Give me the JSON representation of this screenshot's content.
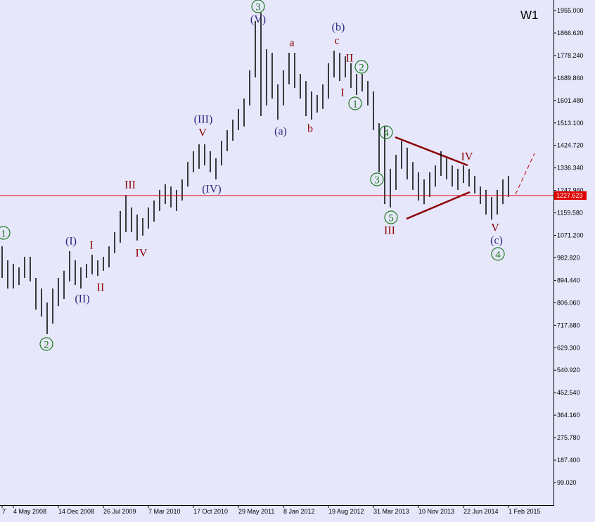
{
  "chart_data": {
    "type": "ohlc",
    "timeframe": "W1",
    "color": "#000000",
    "categories": [
      "7",
      null,
      "4 May 2008",
      null,
      null,
      null,
      null,
      null,
      null,
      null,
      "14 Dec 2008",
      null,
      null,
      null,
      null,
      null,
      null,
      null,
      "26 Jul 2009",
      null,
      null,
      null,
      null,
      null,
      null,
      null,
      "7 Mar 2010",
      null,
      null,
      null,
      null,
      null,
      null,
      null,
      "17 Oct 2010",
      null,
      null,
      null,
      null,
      null,
      null,
      null,
      "29 May 2011",
      null,
      null,
      null,
      null,
      null,
      null,
      null,
      "8 Jan 2012",
      null,
      null,
      null,
      null,
      null,
      null,
      null,
      "19 Aug 2012",
      null,
      null,
      null,
      null,
      null,
      null,
      null,
      "31 Mar 2013",
      null,
      null,
      null,
      null,
      null,
      null,
      null,
      "10 Nov 2013",
      null,
      null,
      null,
      null,
      null,
      null,
      null,
      "22 Jun 2014",
      null,
      null,
      null,
      null,
      null,
      null,
      null,
      "1 Feb 2015"
    ],
    "high": [
      1028,
      973,
      959,
      945,
      987,
      987,
      904,
      862,
      807,
      862,
      904,
      932,
      1009,
      973,
      945,
      959,
      995,
      973,
      987,
      1028,
      1084,
      1167,
      1230,
      1181,
      1153,
      1139,
      1181,
      1208,
      1250,
      1272,
      1263,
      1250,
      1291,
      1360,
      1402,
      1429,
      1429,
      1402,
      1374,
      1443,
      1485,
      1526,
      1568,
      1609,
      1720,
      1914,
      1947,
      1803,
      1789,
      1665,
      1720,
      1789,
      1789,
      1706,
      1678,
      1637,
      1623,
      1665,
      1748,
      1797,
      1789,
      1775,
      1748,
      1706,
      1706,
      1678,
      1637,
      1512,
      1499,
      1333,
      1388,
      1443,
      1416,
      1360,
      1319,
      1291,
      1319,
      1346,
      1402,
      1374,
      1346,
      1333,
      1346,
      1333,
      1305,
      1263,
      1250,
      1222,
      1250,
      1291,
      1305
    ],
    "low": [
      904,
      862,
      862,
      876,
      904,
      890,
      779,
      752,
      683,
      724,
      793,
      821,
      890,
      876,
      862,
      904,
      918,
      912,
      932,
      945,
      1001,
      1042,
      1084,
      1084,
      1051,
      1070,
      1098,
      1125,
      1167,
      1194,
      1181,
      1167,
      1208,
      1263,
      1319,
      1333,
      1346,
      1319,
      1291,
      1346,
      1402,
      1443,
      1485,
      1499,
      1582,
      1692,
      1540,
      1582,
      1609,
      1526,
      1582,
      1665,
      1651,
      1609,
      1540,
      1526,
      1554,
      1568,
      1609,
      1692,
      1678,
      1692,
      1651,
      1623,
      1637,
      1582,
      1485,
      1319,
      1194,
      1181,
      1250,
      1333,
      1291,
      1250,
      1208,
      1194,
      1222,
      1263,
      1305,
      1291,
      1263,
      1250,
      1277,
      1263,
      1236,
      1194,
      1153,
      1133,
      1153,
      1194,
      1222
    ],
    "ylim": [
      10.5,
      1996.5
    ],
    "yticks": [
      {
        "value": 1955,
        "label": "1955.000"
      },
      {
        "value": 1866.62,
        "label": "1866.620"
      },
      {
        "value": 1778.24,
        "label": "1778.240"
      },
      {
        "value": 1689.86,
        "label": "1689.860"
      },
      {
        "value": 1601.48,
        "label": "1601.480"
      },
      {
        "value": 1513.1,
        "label": "1513.100"
      },
      {
        "value": 1424.72,
        "label": "1424.720"
      },
      {
        "value": 1336.34,
        "label": "1336.340"
      },
      {
        "value": 1247.96,
        "label": "1247.960"
      },
      {
        "value": 1159.58,
        "label": "1159.580"
      },
      {
        "value": 1071.2,
        "label": "1071.200"
      },
      {
        "value": 982.82,
        "label": "982.820"
      },
      {
        "value": 894.44,
        "label": "894.440"
      },
      {
        "value": 806.06,
        "label": "806.060"
      },
      {
        "value": 717.68,
        "label": "717.680"
      },
      {
        "value": 629.3,
        "label": "629.300"
      },
      {
        "value": 540.92,
        "label": "540.920"
      },
      {
        "value": 452.54,
        "label": "452.540"
      },
      {
        "value": 364.16,
        "label": "364.160"
      },
      {
        "value": 275.78,
        "label": "275.780"
      },
      {
        "value": 187.4,
        "label": "187.400"
      },
      {
        "value": 99.02,
        "label": "99.020"
      }
    ],
    "current_price": 1227.623,
    "current_price_color": "#e00000",
    "annotations": [
      {
        "text": "1",
        "color": "#1a7a1a",
        "circled": true
      },
      {
        "text": "2",
        "color": "#1a7a1a",
        "circled": true
      },
      {
        "text": "3",
        "color": "#1a7a1a",
        "circled": true
      },
      {
        "text": "2",
        "color": "#1a7a1a",
        "circled": true
      },
      {
        "text": "1",
        "color": "#1a7a1a",
        "circled": true
      },
      {
        "text": "4",
        "color": "#1a7a1a",
        "circled": true
      },
      {
        "text": "3",
        "color": "#1a7a1a",
        "circled": true
      },
      {
        "text": "5",
        "color": "#1a7a1a",
        "circled": true
      },
      {
        "text": "4",
        "color": "#1a7a1a",
        "circled": true
      },
      {
        "text": "(V)",
        "color": "#2a2a80"
      },
      {
        "text": "(b)",
        "color": "#2a2a80"
      },
      {
        "text": "(III)",
        "color": "#2a2a80"
      },
      {
        "text": "(a)",
        "color": "#2a2a80"
      },
      {
        "text": "(IV)",
        "color": "#2a2a80"
      },
      {
        "text": "(I)",
        "color": "#2a2a80"
      },
      {
        "text": "(II)",
        "color": "#2a2a80"
      },
      {
        "text": "(c)",
        "color": "#2a2a80"
      },
      {
        "text": "a",
        "color": "#8b0000"
      },
      {
        "text": "c",
        "color": "#8b0000"
      },
      {
        "text": "II",
        "color": "#8b0000"
      },
      {
        "text": "I",
        "color": "#8b0000"
      },
      {
        "text": "V",
        "color": "#8b0000"
      },
      {
        "text": "b",
        "color": "#8b0000"
      },
      {
        "text": "III",
        "color": "#8b0000"
      },
      {
        "text": "IV",
        "color": "#8b0000"
      },
      {
        "text": "I",
        "color": "#8b0000"
      },
      {
        "text": "II",
        "color": "#8b0000"
      },
      {
        "text": "IV",
        "color": "#8b0000"
      },
      {
        "text": "III",
        "color": "#8b0000"
      },
      {
        "text": "V",
        "color": "#8b0000"
      }
    ]
  }
}
